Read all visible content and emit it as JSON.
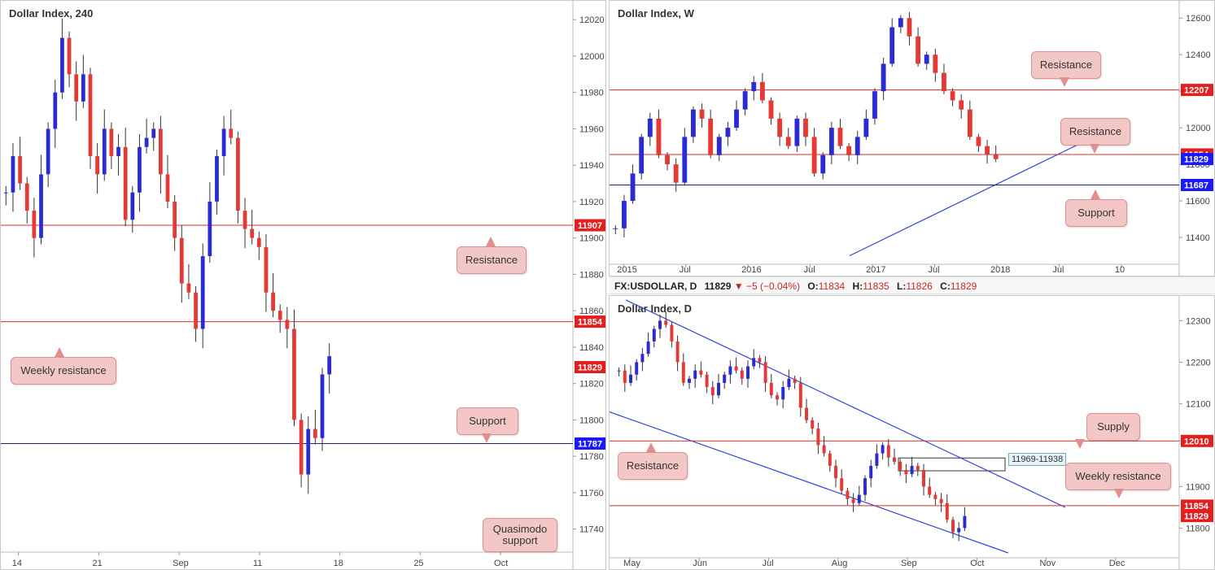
{
  "colors": {
    "bull": "#2b2bd6",
    "bear": "#e53935",
    "resistance_line": "#d32f2f",
    "support_line": "#1a237e",
    "trend_line": "#3344dd",
    "callout_bg": "#f4c7c7",
    "tag_red": "#e31e1e",
    "tag_blue": "#1919ff"
  },
  "panels": {
    "p240": {
      "title": "Dollar Index, 240",
      "y_ticks": [
        "12020",
        "12000",
        "11980",
        "11960",
        "11940",
        "11920",
        "11900",
        "11880",
        "11860",
        "11840",
        "11820",
        "11800",
        "11780",
        "11760",
        "11740"
      ],
      "x_ticks": [
        "14",
        "21",
        "Sep",
        "11",
        "18",
        "25",
        "Oct"
      ],
      "tags": [
        {
          "label": "11907",
          "type": "red"
        },
        {
          "label": "11854",
          "type": "red"
        },
        {
          "label": "11829",
          "type": "red"
        },
        {
          "label": "11787",
          "type": "blue"
        }
      ],
      "callouts": {
        "resistance": "Resistance",
        "weekly_resistance": "Weekly resistance",
        "support": "Support",
        "quasimodo": "Quasimodo support"
      }
    },
    "pW": {
      "title": "Dollar Index, W",
      "y_ticks": [
        "12600",
        "12400",
        "12200",
        "12000",
        "11800",
        "11600",
        "11400"
      ],
      "x_ticks": [
        "2015",
        "Jul",
        "2016",
        "Jul",
        "2017",
        "Jul",
        "2018",
        "Jul",
        "10"
      ],
      "tags": [
        {
          "label": "12207",
          "type": "red"
        },
        {
          "label": "11854",
          "type": "red"
        },
        {
          "label": "11829",
          "type": "blue"
        },
        {
          "label": "11687",
          "type": "blue"
        }
      ],
      "callouts": {
        "resistance_top": "Resistance",
        "resistance_mid": "Resistance",
        "support": "Support"
      }
    },
    "pD": {
      "title": "Dollar Index, D",
      "y_ticks": [
        "12300",
        "12200",
        "12100",
        "12010",
        "11900",
        "11800"
      ],
      "x_ticks": [
        "May",
        "Jun",
        "Jul",
        "Aug",
        "Sep",
        "Oct",
        "Nov",
        "Dec"
      ],
      "tags": [
        {
          "label": "12010",
          "type": "red"
        },
        {
          "label": "11854",
          "type": "red"
        },
        {
          "label": "11829",
          "type": "red"
        }
      ],
      "callouts": {
        "resistance": "Resistance",
        "supply": "Supply",
        "weekly_resistance": "Weekly resistance"
      },
      "zone_label": "11969-11938"
    }
  },
  "infobar": {
    "symbol": "FX:USDOLLAR, D",
    "last": "11829",
    "change": "▼ −5 (−0.04%)",
    "o_label": "O:",
    "o": "11834",
    "h_label": "H:",
    "h": "11835",
    "l_label": "L:",
    "l": "11826",
    "c_label": "C:",
    "c": "11829"
  },
  "chart_data": [
    {
      "type": "candlestick",
      "title": "Dollar Index, 240",
      "y_range": [
        11730,
        12025
      ],
      "horizontal_levels": [
        {
          "value": 11907,
          "kind": "resistance"
        },
        {
          "value": 11854,
          "kind": "weekly resistance"
        },
        {
          "value": 11787,
          "kind": "support"
        }
      ],
      "candles_close_path": [
        11925,
        11945,
        11930,
        11915,
        11900,
        11935,
        11960,
        11980,
        12010,
        11990,
        11975,
        11990,
        11945,
        11935,
        11960,
        11945,
        11950,
        11910,
        11925,
        11950,
        11955,
        11960,
        11935,
        11920,
        11900,
        11875,
        11870,
        11850,
        11890,
        11920,
        11945,
        11960,
        11955,
        11915,
        11905,
        11900,
        11895,
        11870,
        11860,
        11855,
        11850,
        11800,
        11770,
        11795,
        11790,
        11825,
        11835
      ]
    },
    {
      "type": "candlestick",
      "title": "Dollar Index, W",
      "y_range": [
        11280,
        12650
      ],
      "horizontal_levels": [
        {
          "value": 12207,
          "kind": "resistance"
        },
        {
          "value": 11854,
          "kind": "resistance"
        },
        {
          "value": 11687,
          "kind": "support"
        }
      ],
      "candles_close_path": [
        11450,
        11600,
        11750,
        11950,
        12050,
        11850,
        11800,
        11700,
        11950,
        12100,
        12050,
        11850,
        11950,
        12000,
        12100,
        12200,
        12250,
        12150,
        12050,
        11950,
        11900,
        12050,
        11950,
        11750,
        11850,
        12000,
        11900,
        11850,
        11950,
        12050,
        12200,
        12350,
        12550,
        12600,
        12500,
        12350,
        12400,
        12300,
        12200,
        12150,
        12100,
        11950,
        11900,
        11854,
        11829
      ]
    },
    {
      "type": "candlestick",
      "title": "Dollar Index, D",
      "y_range": [
        11740,
        12340
      ],
      "horizontal_levels": [
        {
          "value": 12010,
          "kind": "resistance"
        },
        {
          "value": 11854,
          "kind": "weekly resistance"
        }
      ],
      "supply_zone": [
        11938,
        11969
      ],
      "candles_close_path": [
        12180,
        12150,
        12170,
        12200,
        12220,
        12250,
        12280,
        12300,
        12290,
        12250,
        12200,
        12150,
        12160,
        12180,
        12170,
        12140,
        12120,
        12150,
        12170,
        12190,
        12180,
        12160,
        12190,
        12210,
        12200,
        12150,
        12120,
        12110,
        12140,
        12160,
        12150,
        12090,
        12060,
        12040,
        12000,
        11980,
        11950,
        11920,
        11890,
        11870,
        11860,
        11880,
        11920,
        11950,
        11980,
        12000,
        11970,
        11960,
        11940,
        11930,
        11950,
        11940,
        11900,
        11880,
        11870,
        11860,
        11820,
        11790,
        11800,
        11829
      ]
    }
  ]
}
